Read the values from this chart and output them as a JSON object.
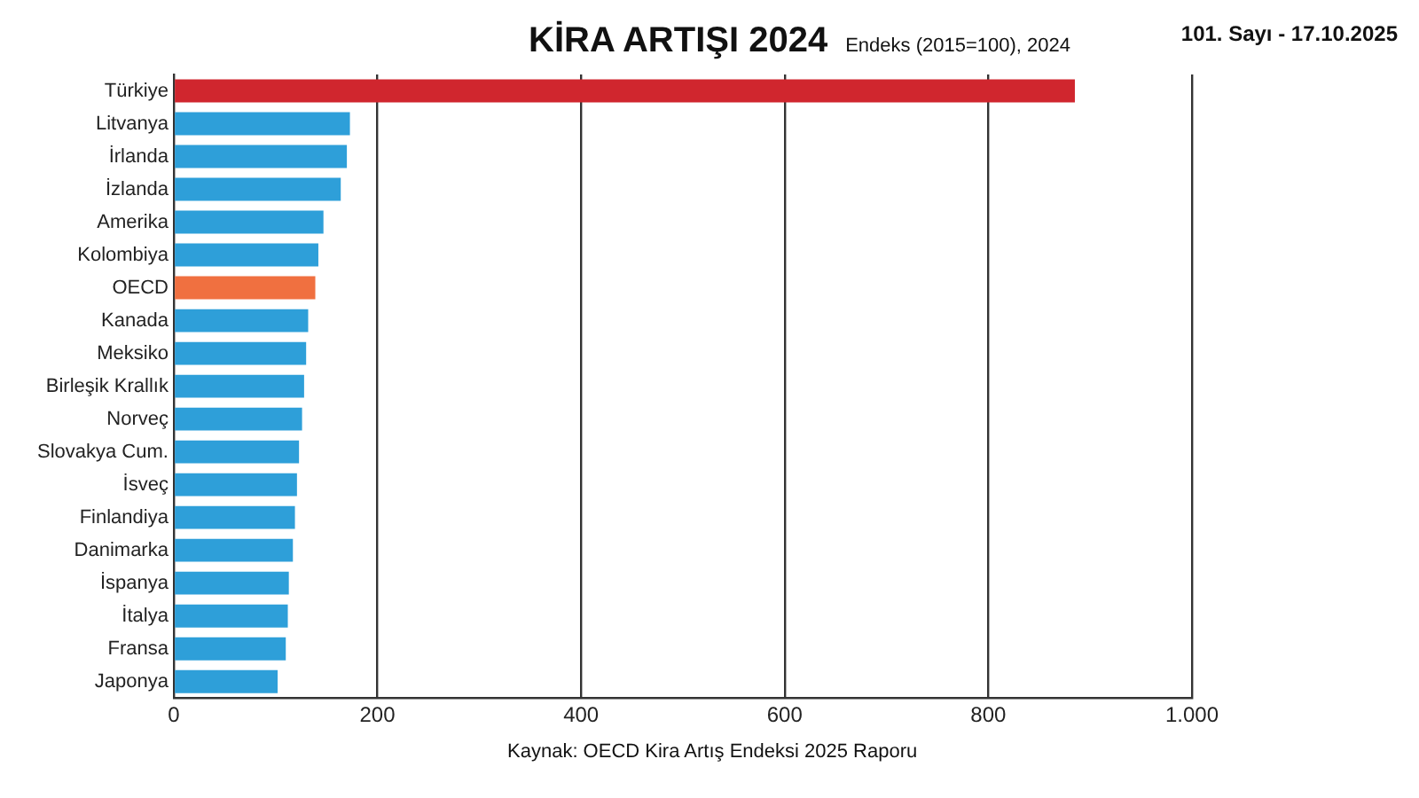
{
  "chart_data": {
    "type": "bar",
    "orientation": "horizontal",
    "title": "KİRA ARTIŞI 2024",
    "subtitle": "Endeks (2015=100), 2024",
    "categories": [
      "Türkiye",
      "Litvanya",
      "İrlanda",
      "İzlanda",
      "Amerika",
      "Kolombiya",
      "OECD",
      "Kanada",
      "Meksiko",
      "Birleşik Krallık",
      "Norveç",
      "Slovakya Cum.",
      "İsveç",
      "Finlandiya",
      "Danimarka",
      "İspanya",
      "İtalya",
      "Fransa",
      "Japonya"
    ],
    "values": [
      885,
      173,
      170,
      164,
      147,
      142,
      139,
      132,
      130,
      128,
      126,
      123,
      121,
      119,
      117,
      113,
      112,
      110,
      102
    ],
    "colors": [
      "#d0262e",
      "#2e9fd9",
      "#2e9fd9",
      "#2e9fd9",
      "#2e9fd9",
      "#2e9fd9",
      "#f07040",
      "#2e9fd9",
      "#2e9fd9",
      "#2e9fd9",
      "#2e9fd9",
      "#2e9fd9",
      "#2e9fd9",
      "#2e9fd9",
      "#2e9fd9",
      "#2e9fd9",
      "#2e9fd9",
      "#2e9fd9",
      "#2e9fd9"
    ],
    "xlim": [
      0,
      1000
    ],
    "xticks": [
      0,
      200,
      400,
      600,
      800,
      {
        "value": 1000,
        "label": "1.000"
      }
    ],
    "grid": "x",
    "legend": false,
    "annotations": [
      "Kaynak: OECD Kira Artış Endeksi 2025 Raporu",
      "101. Sayı - 17.10.2025"
    ]
  }
}
